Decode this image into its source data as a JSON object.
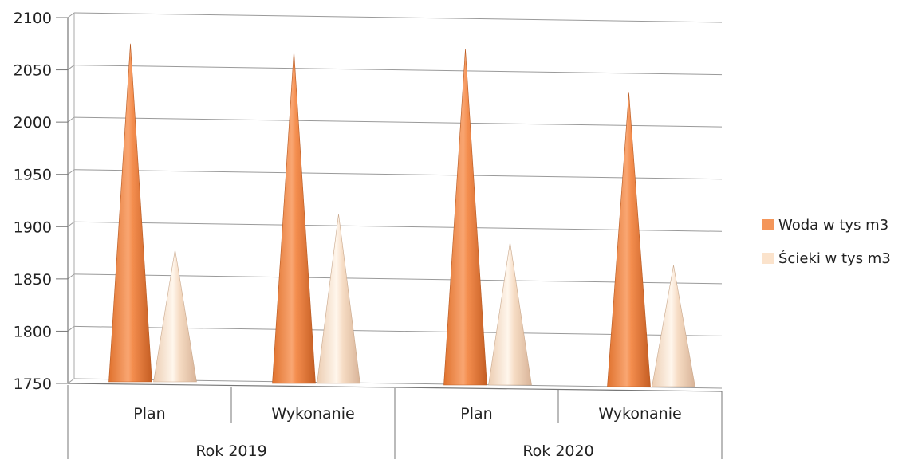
{
  "chart_data": {
    "type": "bar",
    "title": "",
    "xlabel": "",
    "ylabel": "",
    "ylim": [
      1750,
      2100
    ],
    "yticks": [
      "2100",
      "2050",
      "2000",
      "1950",
      "1900",
      "1850",
      "1800",
      "1750"
    ],
    "categories": [
      "Plan",
      "Wykonanie",
      "Plan",
      "Wykonanie"
    ],
    "groups": [
      {
        "label": "Rok 2019",
        "categories": [
          "Plan",
          "Wykonanie"
        ]
      },
      {
        "label": "Rok 2020",
        "categories": [
          "Plan",
          "Wykonanie"
        ]
      }
    ],
    "series": [
      {
        "name": "Woda w tys m3",
        "color": "#f4965a",
        "values": [
          2075,
          2068,
          2070,
          2028
        ]
      },
      {
        "name": "Ścieki w tys m3",
        "color": "#fbe3cc",
        "values": [
          1878,
          1912,
          1885,
          1863
        ]
      }
    ],
    "bar_shape": "cone",
    "grid": true,
    "legend_position": "right"
  }
}
